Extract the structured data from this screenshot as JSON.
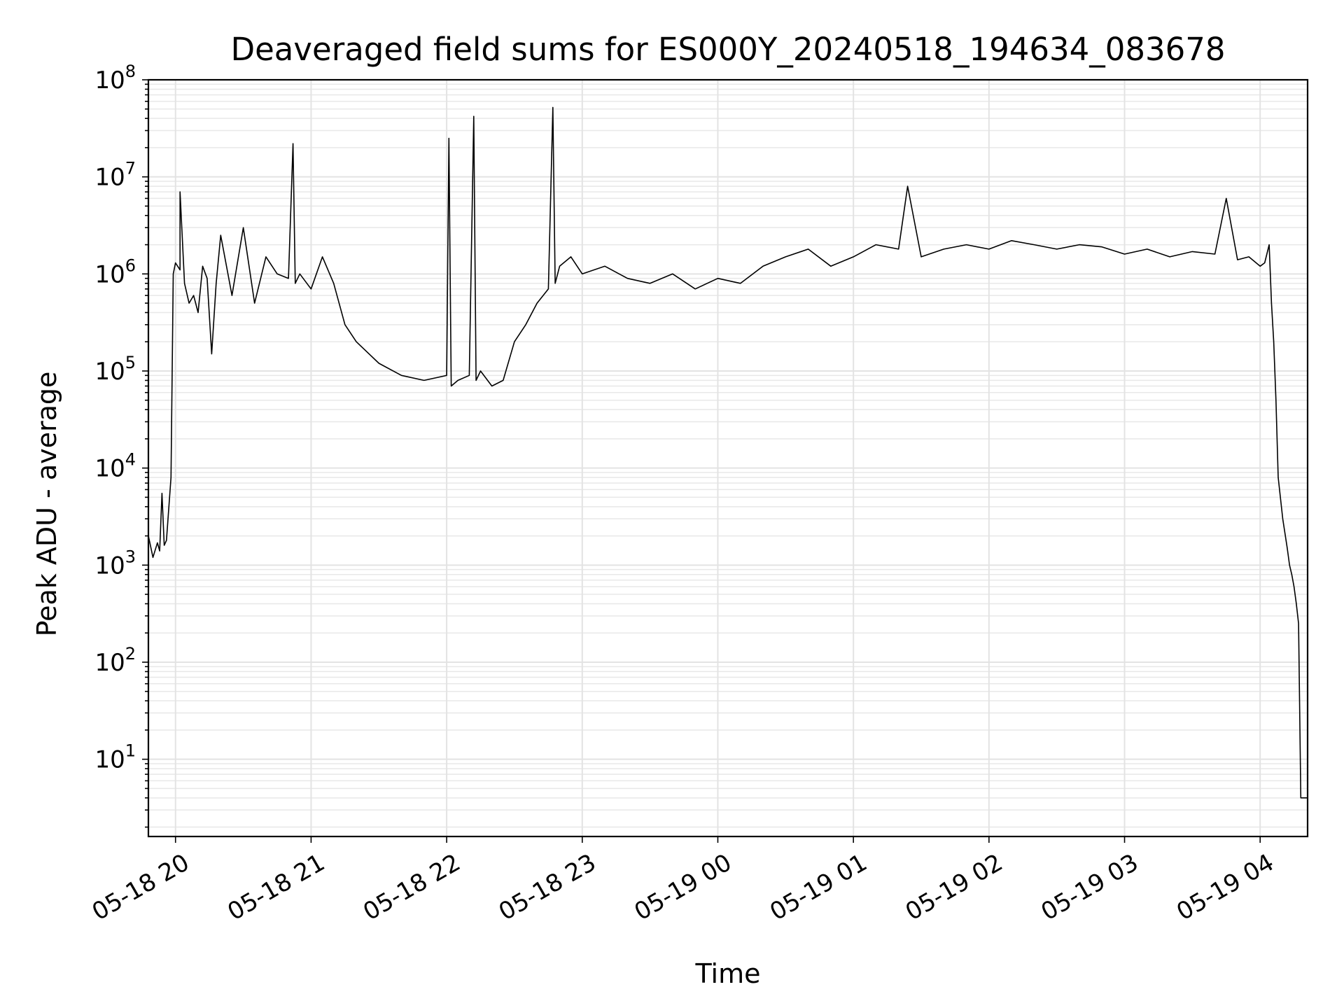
{
  "chart_data": {
    "type": "line",
    "title": "Deaveraged field sums for ES000Y_20240518_194634_083678",
    "xlabel": "Time",
    "ylabel": "Peak ADU - average",
    "yscale": "log",
    "ylim": [
      1.6,
      100000000
    ],
    "xlim": [
      "2024-05-18 19:48",
      "2024-05-19 04:21"
    ],
    "x_tick_labels": [
      "05-18 20",
      "05-18 21",
      "05-18 22",
      "05-18 23",
      "05-19 00",
      "05-19 01",
      "05-19 02",
      "05-19 03",
      "05-19 04"
    ],
    "x_tick_times": [
      "2024-05-18 20:00",
      "2024-05-18 21:00",
      "2024-05-18 22:00",
      "2024-05-18 23:00",
      "2024-05-19 00:00",
      "2024-05-19 01:00",
      "2024-05-19 02:00",
      "2024-05-19 03:00",
      "2024-05-19 04:00"
    ],
    "y_tick_labels": [
      {
        "base": "10",
        "exp": "1"
      },
      {
        "base": "10",
        "exp": "2"
      },
      {
        "base": "10",
        "exp": "3"
      },
      {
        "base": "10",
        "exp": "4"
      },
      {
        "base": "10",
        "exp": "5"
      },
      {
        "base": "10",
        "exp": "6"
      },
      {
        "base": "10",
        "exp": "7"
      },
      {
        "base": "10",
        "exp": "8"
      }
    ],
    "y_tick_values": [
      10,
      100,
      1000,
      10000,
      100000,
      1000000,
      10000000,
      100000000
    ],
    "grid": true,
    "line_color": "#000000",
    "series": [
      {
        "x": [
          "2024-05-18 19:48",
          "2024-05-18 19:50",
          "2024-05-18 19:52",
          "2024-05-18 19:53",
          "2024-05-18 19:54",
          "2024-05-18 19:55",
          "2024-05-18 19:56",
          "2024-05-18 19:58",
          "2024-05-18 19:59",
          "2024-05-18 20:00",
          "2024-05-18 20:02",
          "2024-05-18 20:02",
          "2024-05-18 20:04",
          "2024-05-18 20:06",
          "2024-05-18 20:08",
          "2024-05-18 20:10",
          "2024-05-18 20:12",
          "2024-05-18 20:14",
          "2024-05-18 20:16",
          "2024-05-18 20:18",
          "2024-05-18 20:20",
          "2024-05-18 20:25",
          "2024-05-18 20:30",
          "2024-05-18 20:35",
          "2024-05-18 20:40",
          "2024-05-18 20:45",
          "2024-05-18 20:50",
          "2024-05-18 20:52",
          "2024-05-18 20:53",
          "2024-05-18 20:55",
          "2024-05-18 21:00",
          "2024-05-18 21:05",
          "2024-05-18 21:10",
          "2024-05-18 21:15",
          "2024-05-18 21:20",
          "2024-05-18 21:30",
          "2024-05-18 21:40",
          "2024-05-18 21:50",
          "2024-05-18 22:00",
          "2024-05-18 22:01",
          "2024-05-18 22:02",
          "2024-05-18 22:05",
          "2024-05-18 22:10",
          "2024-05-18 22:12",
          "2024-05-18 22:13",
          "2024-05-18 22:15",
          "2024-05-18 22:20",
          "2024-05-18 22:25",
          "2024-05-18 22:30",
          "2024-05-18 22:35",
          "2024-05-18 22:40",
          "2024-05-18 22:45",
          "2024-05-18 22:47",
          "2024-05-18 22:48",
          "2024-05-18 22:50",
          "2024-05-18 22:55",
          "2024-05-18 23:00",
          "2024-05-18 23:10",
          "2024-05-18 23:20",
          "2024-05-18 23:30",
          "2024-05-18 23:40",
          "2024-05-18 23:50",
          "2024-05-19 00:00",
          "2024-05-19 00:10",
          "2024-05-19 00:20",
          "2024-05-19 00:30",
          "2024-05-19 00:40",
          "2024-05-19 00:50",
          "2024-05-19 01:00",
          "2024-05-19 01:10",
          "2024-05-19 01:20",
          "2024-05-19 01:24",
          "2024-05-19 01:30",
          "2024-05-19 01:40",
          "2024-05-19 01:50",
          "2024-05-19 02:00",
          "2024-05-19 02:10",
          "2024-05-19 02:20",
          "2024-05-19 02:30",
          "2024-05-19 02:40",
          "2024-05-19 02:50",
          "2024-05-19 03:00",
          "2024-05-19 03:10",
          "2024-05-19 03:20",
          "2024-05-19 03:30",
          "2024-05-19 03:40",
          "2024-05-19 03:45",
          "2024-05-19 03:50",
          "2024-05-19 03:55",
          "2024-05-19 04:00",
          "2024-05-19 04:02",
          "2024-05-19 04:04",
          "2024-05-19 04:05",
          "2024-05-19 04:06",
          "2024-05-19 04:07",
          "2024-05-19 04:08",
          "2024-05-19 04:10",
          "2024-05-19 04:12",
          "2024-05-19 04:13",
          "2024-05-19 04:14",
          "2024-05-19 04:15",
          "2024-05-19 04:16",
          "2024-05-19 04:17",
          "2024-05-19 04:18",
          "2024-05-19 04:19",
          "2024-05-19 04:20",
          "2024-05-19 04:21"
        ],
        "y": [
          2000,
          1200,
          1700,
          1400,
          5500,
          1600,
          1800,
          8000,
          1000000,
          1300000,
          1100000,
          7000000,
          800000,
          500000,
          600000,
          400000,
          1200000,
          900000,
          150000,
          800000,
          2500000,
          600000,
          3000000,
          500000,
          1500000,
          1000000,
          900000,
          22000000,
          800000,
          1000000,
          700000,
          1500000,
          800000,
          300000,
          200000,
          120000,
          90000,
          80000,
          90000,
          25000000,
          70000,
          80000,
          90000,
          42000000,
          80000,
          100000,
          70000,
          80000,
          200000,
          300000,
          500000,
          700000,
          52000000,
          800000,
          1200000,
          1500000,
          1000000,
          1200000,
          900000,
          800000,
          1000000,
          700000,
          900000,
          800000,
          1200000,
          1500000,
          1800000,
          1200000,
          1500000,
          2000000,
          1800000,
          8000000,
          1500000,
          1800000,
          2000000,
          1800000,
          2200000,
          2000000,
          1800000,
          2000000,
          1900000,
          1600000,
          1800000,
          1500000,
          1700000,
          1600000,
          6000000,
          1400000,
          1500000,
          1200000,
          1300000,
          2000000,
          500000,
          200000,
          50000,
          8000,
          3000,
          1500,
          1000,
          800,
          600,
          400,
          250,
          4,
          4,
          4,
          4
        ]
      }
    ]
  }
}
